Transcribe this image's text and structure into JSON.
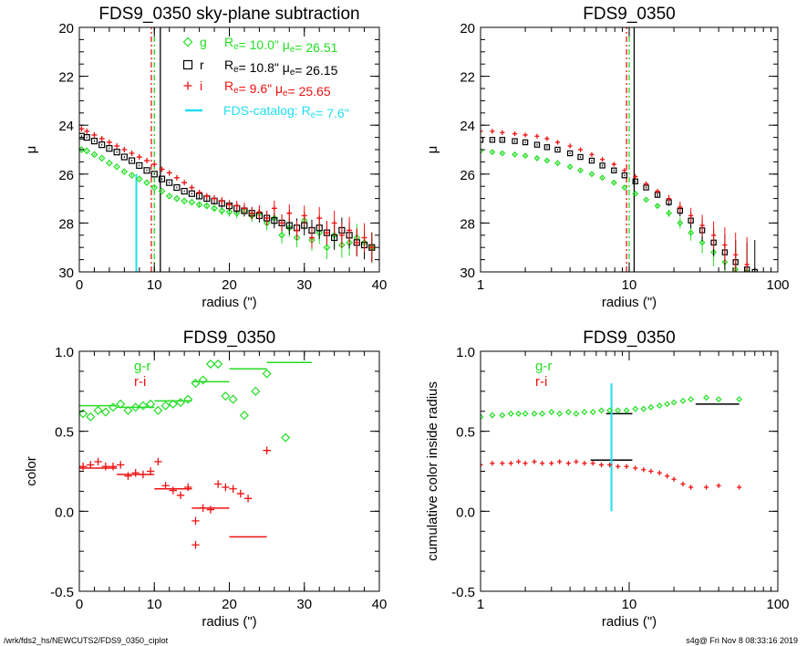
{
  "footer": {
    "left": "/wrk/fds2_hs/NEWCUTS2/FDS9_0350_ciplot",
    "right": "s4g@  Fri Nov  8 08:33:16 2019"
  },
  "colors": {
    "g": "#22dd22",
    "r": "#000000",
    "i": "#ee1111",
    "catalog": "#22ddee"
  },
  "chart_data": [
    {
      "type": "scatter",
      "title": "FDS9_0350 sky-plane subtraction",
      "xlabel": "radius (\")",
      "ylabel": "μ",
      "xlim": [
        0,
        40
      ],
      "ylim": [
        30,
        20
      ],
      "xticks": [
        0,
        10,
        20,
        30,
        40
      ],
      "yticks": [
        20,
        22,
        24,
        26,
        28,
        30
      ],
      "legend_position": "top-right",
      "legend": [
        {
          "symbol": "diamond",
          "band": "g",
          "text": "R_e= 10.0\"  μ_e= 26.51",
          "Re": 10.0,
          "mue": 26.51
        },
        {
          "symbol": "square",
          "band": "r",
          "text": "R_e= 10.8\"  μ_e= 26.15",
          "Re": 10.8,
          "mue": 26.15
        },
        {
          "symbol": "plus",
          "band": "i",
          "text": "R_e=  9.6\"  μ_e= 25.65",
          "Re": 9.6,
          "mue": 25.65
        },
        {
          "symbol": "line",
          "band": "catalog",
          "text": "FDS-catalog: R_e=  7.6\"",
          "Re": 7.6
        }
      ],
      "vlines": [
        {
          "x": 10.0,
          "band": "g",
          "style": "dashdot"
        },
        {
          "x": 10.8,
          "band": "r",
          "style": "solid"
        },
        {
          "x": 9.6,
          "band": "i",
          "style": "dashdot"
        },
        {
          "x": 7.6,
          "band": "catalog",
          "style": "solid",
          "ymin": 26.0
        }
      ],
      "series": [
        {
          "name": "g",
          "x": [
            0.3,
            1,
            2,
            3,
            4,
            5,
            6,
            7,
            8,
            9,
            10,
            11,
            12,
            13,
            14,
            15,
            16,
            17,
            18,
            19,
            20,
            21,
            22,
            23,
            24,
            25,
            26,
            27,
            28,
            29,
            30,
            31,
            32,
            33,
            34,
            35,
            36,
            37,
            38,
            39
          ],
          "y": [
            25.0,
            25.05,
            25.2,
            25.35,
            25.55,
            25.7,
            25.9,
            26.05,
            26.2,
            26.35,
            26.55,
            26.7,
            26.9,
            27.0,
            27.1,
            27.15,
            27.25,
            27.3,
            27.4,
            27.5,
            27.55,
            27.6,
            27.5,
            27.7,
            27.6,
            28.0,
            27.8,
            28.5,
            28.2,
            28.6,
            27.9,
            28.7,
            28.4,
            29.0,
            28.5,
            28.9,
            28.8,
            28.6,
            28.8,
            29.0
          ]
        },
        {
          "name": "r",
          "x": [
            0.3,
            1,
            2,
            3,
            4,
            5,
            6,
            7,
            8,
            9,
            10,
            11,
            12,
            13,
            14,
            15,
            16,
            17,
            18,
            19,
            20,
            21,
            22,
            23,
            24,
            25,
            26,
            27,
            28,
            29,
            30,
            31,
            32,
            33,
            34,
            35,
            36,
            37,
            38,
            39
          ],
          "y": [
            24.45,
            24.5,
            24.65,
            24.8,
            24.95,
            25.1,
            25.3,
            25.45,
            25.65,
            25.85,
            26.0,
            26.2,
            26.35,
            26.55,
            26.7,
            26.8,
            26.9,
            27.0,
            27.1,
            27.2,
            27.3,
            27.4,
            27.5,
            27.6,
            27.7,
            27.8,
            27.9,
            28.0,
            28.1,
            28.2,
            28.1,
            28.3,
            28.2,
            28.4,
            28.6,
            28.3,
            28.5,
            28.8,
            28.9,
            29.0
          ]
        },
        {
          "name": "i",
          "x": [
            0.3,
            1,
            2,
            3,
            4,
            5,
            6,
            7,
            8,
            9,
            10,
            11,
            12,
            13,
            14,
            15,
            16,
            17,
            18,
            19,
            20,
            21,
            22,
            23,
            24,
            25,
            26,
            27,
            28,
            29,
            30,
            31,
            32,
            33,
            34,
            35,
            36,
            37,
            38,
            39
          ],
          "y": [
            24.15,
            24.25,
            24.4,
            24.55,
            24.7,
            24.85,
            25.0,
            25.15,
            25.3,
            25.45,
            25.6,
            25.8,
            25.95,
            26.15,
            26.35,
            26.55,
            26.75,
            26.9,
            27.0,
            27.1,
            27.25,
            27.3,
            27.4,
            27.6,
            27.55,
            27.8,
            27.4,
            28.0,
            27.6,
            28.3,
            27.7,
            28.6,
            27.8,
            28.4,
            28.0,
            28.5,
            28.3,
            28.8,
            28.6,
            29.0
          ]
        }
      ]
    },
    {
      "type": "scatter",
      "title": "FDS9_0350",
      "xlabel": "radius (\")",
      "ylabel": "μ",
      "xscale": "log",
      "xlim": [
        1,
        100
      ],
      "ylim": [
        30,
        20
      ],
      "xtick_labels": [
        "1",
        "10",
        "100"
      ],
      "yticks": [
        20,
        22,
        24,
        26,
        28,
        30
      ],
      "vlines": [
        {
          "x": 10.0,
          "band": "g",
          "style": "dashdot"
        },
        {
          "x": 10.8,
          "band": "r",
          "style": "solid"
        },
        {
          "x": 9.6,
          "band": "i",
          "style": "dashdot"
        }
      ],
      "series": [
        {
          "name": "g",
          "x": [
            1.0,
            1.2,
            1.4,
            1.7,
            2.0,
            2.4,
            2.8,
            3.3,
            4.0,
            4.7,
            5.6,
            6.6,
            7.9,
            9.3,
            11,
            13,
            15.5,
            18.5,
            22,
            26,
            31,
            37,
            44,
            52,
            62
          ],
          "y": [
            25.05,
            25.1,
            25.15,
            25.2,
            25.25,
            25.35,
            25.45,
            25.55,
            25.7,
            25.85,
            26.0,
            26.15,
            26.35,
            26.55,
            26.8,
            27.05,
            27.3,
            27.6,
            28.0,
            28.4,
            28.8,
            29.2,
            29.6,
            29.9,
            30.0
          ]
        },
        {
          "name": "r",
          "x": [
            1.0,
            1.2,
            1.4,
            1.7,
            2.0,
            2.4,
            2.8,
            3.3,
            4.0,
            4.7,
            5.6,
            6.6,
            7.9,
            9.3,
            11,
            13,
            15.5,
            18.5,
            22,
            26,
            31,
            37,
            44,
            52,
            62,
            70
          ],
          "y": [
            24.6,
            24.6,
            24.6,
            24.65,
            24.7,
            24.8,
            24.9,
            25.0,
            25.15,
            25.3,
            25.45,
            25.65,
            25.85,
            26.05,
            26.3,
            26.55,
            26.85,
            27.15,
            27.5,
            27.9,
            28.3,
            28.8,
            29.2,
            29.6,
            29.9,
            30.0
          ]
        },
        {
          "name": "i",
          "x": [
            1.0,
            1.2,
            1.4,
            1.7,
            2.0,
            2.4,
            2.8,
            3.3,
            4.0,
            4.7,
            5.6,
            6.6,
            7.9,
            9.3,
            11,
            13,
            15.5,
            18.5,
            22,
            26,
            31,
            37,
            44,
            52,
            62
          ],
          "y": [
            24.25,
            24.25,
            24.3,
            24.35,
            24.4,
            24.45,
            24.55,
            24.7,
            24.85,
            25.0,
            25.2,
            25.4,
            25.6,
            25.85,
            26.1,
            26.4,
            26.7,
            27.0,
            27.35,
            27.7,
            28.1,
            28.5,
            28.9,
            29.3,
            29.7
          ]
        }
      ]
    },
    {
      "type": "scatter",
      "title": "FDS9_0350",
      "xlabel": "radius (\")",
      "ylabel": "color",
      "xlim": [
        0,
        40
      ],
      "ylim": [
        -0.5,
        1.0
      ],
      "xticks": [
        0,
        10,
        20,
        30,
        40
      ],
      "yticks": [
        -0.5,
        0.0,
        0.5,
        1.0
      ],
      "legend_position": "top-left",
      "legend": [
        {
          "band": "g",
          "text": "g-r"
        },
        {
          "band": "i",
          "text": "r-i"
        }
      ],
      "series": [
        {
          "name": "g-r",
          "marker": "diamond",
          "x": [
            0.5,
            1.5,
            2.5,
            3.5,
            4.5,
            5.5,
            6.5,
            7.5,
            8.5,
            9.5,
            10.5,
            11.5,
            12.5,
            13.5,
            14.5,
            15.5,
            16.5,
            17.5,
            18.5,
            19.5,
            20.5,
            22,
            23.5,
            25,
            27.5
          ],
          "y": [
            0.61,
            0.59,
            0.63,
            0.62,
            0.65,
            0.67,
            0.63,
            0.65,
            0.66,
            0.67,
            0.63,
            0.66,
            0.67,
            0.68,
            0.7,
            0.8,
            0.82,
            0.92,
            0.92,
            0.72,
            0.7,
            0.6,
            0.75,
            0.86,
            0.46
          ]
        },
        {
          "name": "r-i",
          "marker": "plus",
          "x": [
            0.5,
            1.5,
            2.5,
            3.5,
            4.5,
            5.5,
            6.5,
            7.5,
            8.5,
            9.5,
            10.5,
            11.5,
            12.5,
            13.5,
            14.5,
            15.5,
            16.5,
            17.5,
            18.5,
            19.5,
            20.5,
            21.5,
            22.5,
            25
          ],
          "y": [
            0.28,
            0.29,
            0.31,
            0.28,
            0.28,
            0.29,
            0.22,
            0.24,
            0.23,
            0.25,
            0.31,
            0.16,
            0.13,
            0.1,
            0.15,
            -0.06,
            0.02,
            0.01,
            0.17,
            0.15,
            0.14,
            0.11,
            0.08,
            0.38
          ]
        }
      ],
      "segments": [
        {
          "band": "g",
          "x0": 0,
          "x1": 5,
          "y": 0.66
        },
        {
          "band": "g",
          "x0": 5,
          "x1": 10,
          "y": 0.65
        },
        {
          "band": "g",
          "x0": 10,
          "x1": 15,
          "y": 0.69
        },
        {
          "band": "g",
          "x0": 15,
          "x1": 20,
          "y": 0.81
        },
        {
          "band": "g",
          "x0": 20,
          "x1": 25,
          "y": 0.89
        },
        {
          "band": "g",
          "x0": 25,
          "x1": 31,
          "y": 0.93
        },
        {
          "band": "i",
          "x0": 0,
          "x1": 5,
          "y": 0.27
        },
        {
          "band": "i",
          "x0": 5,
          "x1": 10,
          "y": 0.23
        },
        {
          "band": "i",
          "x0": 10,
          "x1": 15,
          "y": 0.14
        },
        {
          "band": "i",
          "x0": 15,
          "x1": 20,
          "y": 0.02
        },
        {
          "band": "i",
          "x0": 20,
          "x1": 25,
          "y": -0.16
        }
      ],
      "extra_points": [
        {
          "band": "i",
          "x": 15.5,
          "y": -0.21
        }
      ]
    },
    {
      "type": "scatter",
      "title": "FDS9_0350",
      "xlabel": "radius (\")",
      "ylabel": "cumulative color inside radius",
      "xscale": "log",
      "xlim": [
        1,
        100
      ],
      "ylim": [
        -0.5,
        1.0
      ],
      "xtick_labels": [
        "1",
        "10",
        "100"
      ],
      "yticks": [
        -0.5,
        0.0,
        0.5,
        1.0
      ],
      "legend_position": "top-left",
      "legend": [
        {
          "band": "g",
          "text": "g-r"
        },
        {
          "band": "i",
          "text": "r-i"
        }
      ],
      "vlines": [
        {
          "x": 7.6,
          "band": "catalog",
          "style": "solid",
          "ymin": 0.0,
          "ymax": 0.8
        }
      ],
      "series": [
        {
          "name": "g-r",
          "marker": "diamond",
          "x": [
            1.0,
            1.2,
            1.4,
            1.6,
            1.8,
            2.0,
            2.3,
            2.6,
            3.0,
            3.4,
            3.9,
            4.4,
            5.0,
            5.7,
            6.5,
            7.4,
            8.4,
            9.6,
            11,
            12.5,
            14,
            16,
            18,
            20,
            23,
            26,
            33,
            40,
            55
          ],
          "y": [
            0.59,
            0.6,
            0.6,
            0.61,
            0.61,
            0.61,
            0.61,
            0.61,
            0.62,
            0.61,
            0.62,
            0.61,
            0.62,
            0.62,
            0.63,
            0.63,
            0.63,
            0.63,
            0.64,
            0.64,
            0.65,
            0.66,
            0.67,
            0.68,
            0.69,
            0.7,
            0.71,
            0.7,
            0.7
          ]
        },
        {
          "name": "r-i",
          "marker": "plus",
          "x": [
            1.0,
            1.2,
            1.4,
            1.6,
            1.8,
            2.0,
            2.3,
            2.6,
            3.0,
            3.4,
            3.9,
            4.4,
            5.0,
            5.7,
            6.5,
            7.4,
            8.4,
            9.6,
            11,
            12.5,
            14,
            16,
            18,
            20,
            23,
            26,
            33,
            40,
            55
          ],
          "y": [
            0.29,
            0.3,
            0.3,
            0.3,
            0.31,
            0.3,
            0.31,
            0.3,
            0.3,
            0.31,
            0.3,
            0.31,
            0.3,
            0.3,
            0.29,
            0.29,
            0.28,
            0.28,
            0.27,
            0.26,
            0.25,
            0.24,
            0.22,
            0.2,
            0.17,
            0.15,
            0.15,
            0.16,
            0.15
          ]
        }
      ],
      "segments": [
        {
          "band": "r",
          "x0": 7.0,
          "x1": 10.5,
          "y": 0.61
        },
        {
          "band": "r",
          "x0": 28,
          "x1": 55,
          "y": 0.67
        },
        {
          "band": "r",
          "x0": 5.5,
          "x1": 10.5,
          "y": 0.32
        }
      ]
    }
  ]
}
